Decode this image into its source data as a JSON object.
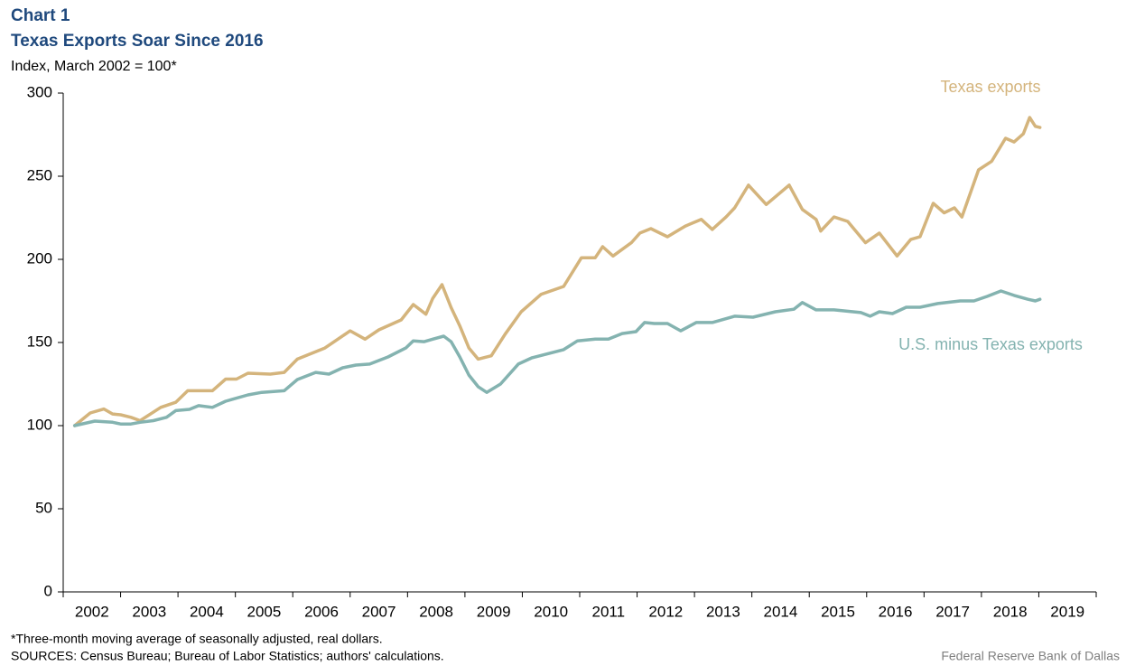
{
  "chart_data": {
    "type": "line",
    "label": "Chart 1",
    "title": "Texas Exports Soar Since 2016",
    "ylabel": "Index, March 2002 = 100*",
    "footnote": "*Three-month moving average of seasonally adjusted, real dollars.",
    "sources": "SOURCES: Census Bureau; Bureau of Labor Statistics; authors' calculations.",
    "credit": "Federal Reserve Bank of Dallas",
    "xlim": [
      2002,
      2020
    ],
    "xticks": [
      2002,
      2003,
      2004,
      2005,
      2006,
      2007,
      2008,
      2009,
      2010,
      2011,
      2012,
      2013,
      2014,
      2015,
      2016,
      2017,
      2018,
      2019
    ],
    "ylim": [
      0,
      300
    ],
    "yticks": [
      0,
      50,
      100,
      150,
      200,
      250,
      300
    ],
    "grid": false,
    "series": [
      {
        "name": "Texas exports",
        "color": "#d4b47c",
        "x": [
          2002.2,
          2002.47,
          2002.71,
          2002.86,
          2003.0,
          2003.18,
          2003.34,
          2003.7,
          2003.96,
          2004.17,
          2004.6,
          2004.83,
          2005.02,
          2005.22,
          2005.61,
          2005.85,
          2006.08,
          2006.56,
          2007.0,
          2007.26,
          2007.5,
          2007.89,
          2008.1,
          2008.32,
          2008.44,
          2008.6,
          2008.76,
          2008.91,
          2009.07,
          2009.23,
          2009.46,
          2009.7,
          2009.98,
          2010.33,
          2010.72,
          2011.03,
          2011.27,
          2011.4,
          2011.58,
          2011.9,
          2012.05,
          2012.24,
          2012.53,
          2012.84,
          2013.12,
          2013.31,
          2013.55,
          2013.7,
          2013.94,
          2014.25,
          2014.65,
          2014.88,
          2015.12,
          2015.2,
          2015.43,
          2015.67,
          2015.98,
          2016.22,
          2016.53,
          2016.77,
          2016.93,
          2017.16,
          2017.35,
          2017.53,
          2017.66,
          2017.95,
          2018.18,
          2018.42,
          2018.57,
          2018.73,
          2018.84,
          2018.94,
          2019.02
        ],
        "values": [
          100,
          107.6,
          110,
          107,
          106.5,
          105,
          103,
          111,
          114,
          121,
          121,
          128,
          128,
          131.5,
          131,
          132,
          140,
          146.7,
          157,
          152,
          157.6,
          163.6,
          172.8,
          167,
          176.6,
          184.8,
          171,
          160,
          146.7,
          140,
          142,
          155,
          168.5,
          179,
          183.7,
          201,
          201,
          207.6,
          202,
          210,
          215.8,
          218.5,
          213.6,
          220,
          224,
          218,
          225.5,
          231,
          244.6,
          233,
          244.6,
          230,
          224,
          217,
          225.5,
          222.8,
          210,
          215.8,
          202,
          212,
          213.6,
          233.7,
          228,
          231,
          225.5,
          253.8,
          259,
          272.8,
          270.6,
          275.5,
          285.3,
          280,
          279.3
        ]
      },
      {
        "name": "U.S. minus Texas exports",
        "color": "#84b3b0",
        "x": [
          2002.2,
          2002.55,
          2002.86,
          2003.0,
          2003.18,
          2003.34,
          2003.57,
          2003.8,
          2003.96,
          2004.2,
          2004.36,
          2004.6,
          2004.83,
          2005.22,
          2005.46,
          2005.85,
          2006.08,
          2006.4,
          2006.63,
          2006.87,
          2007.1,
          2007.34,
          2007.66,
          2007.97,
          2008.1,
          2008.29,
          2008.44,
          2008.63,
          2008.76,
          2008.91,
          2009.07,
          2009.23,
          2009.38,
          2009.62,
          2009.93,
          2010.17,
          2010.72,
          2010.96,
          2011.27,
          2011.5,
          2011.74,
          2011.98,
          2012.13,
          2012.3,
          2012.53,
          2012.76,
          2013.03,
          2013.31,
          2013.7,
          2014.02,
          2014.41,
          2014.73,
          2014.88,
          2015.12,
          2015.43,
          2015.9,
          2016.06,
          2016.22,
          2016.45,
          2016.69,
          2016.93,
          2017.24,
          2017.63,
          2017.87,
          2018.1,
          2018.34,
          2018.57,
          2018.81,
          2018.94,
          2019.02
        ],
        "values": [
          100,
          102.7,
          102,
          101,
          101,
          102,
          103,
          105,
          109,
          109.8,
          112,
          111,
          114.7,
          118.5,
          120,
          121,
          127.7,
          132,
          131,
          134.8,
          136.4,
          137,
          141.3,
          146.7,
          151,
          150.5,
          152,
          153.8,
          150.5,
          141.3,
          130.4,
          123.4,
          120,
          125,
          137,
          140.8,
          145.7,
          151,
          152,
          152,
          155.4,
          156.5,
          162,
          161.4,
          161.4,
          157,
          162,
          162,
          165.8,
          165.2,
          168.5,
          170,
          174,
          169.6,
          169.6,
          168,
          165.8,
          168.5,
          167.4,
          171.2,
          171.2,
          173.4,
          175,
          175,
          177.7,
          181,
          178.3,
          176,
          175,
          176
        ]
      }
    ]
  }
}
